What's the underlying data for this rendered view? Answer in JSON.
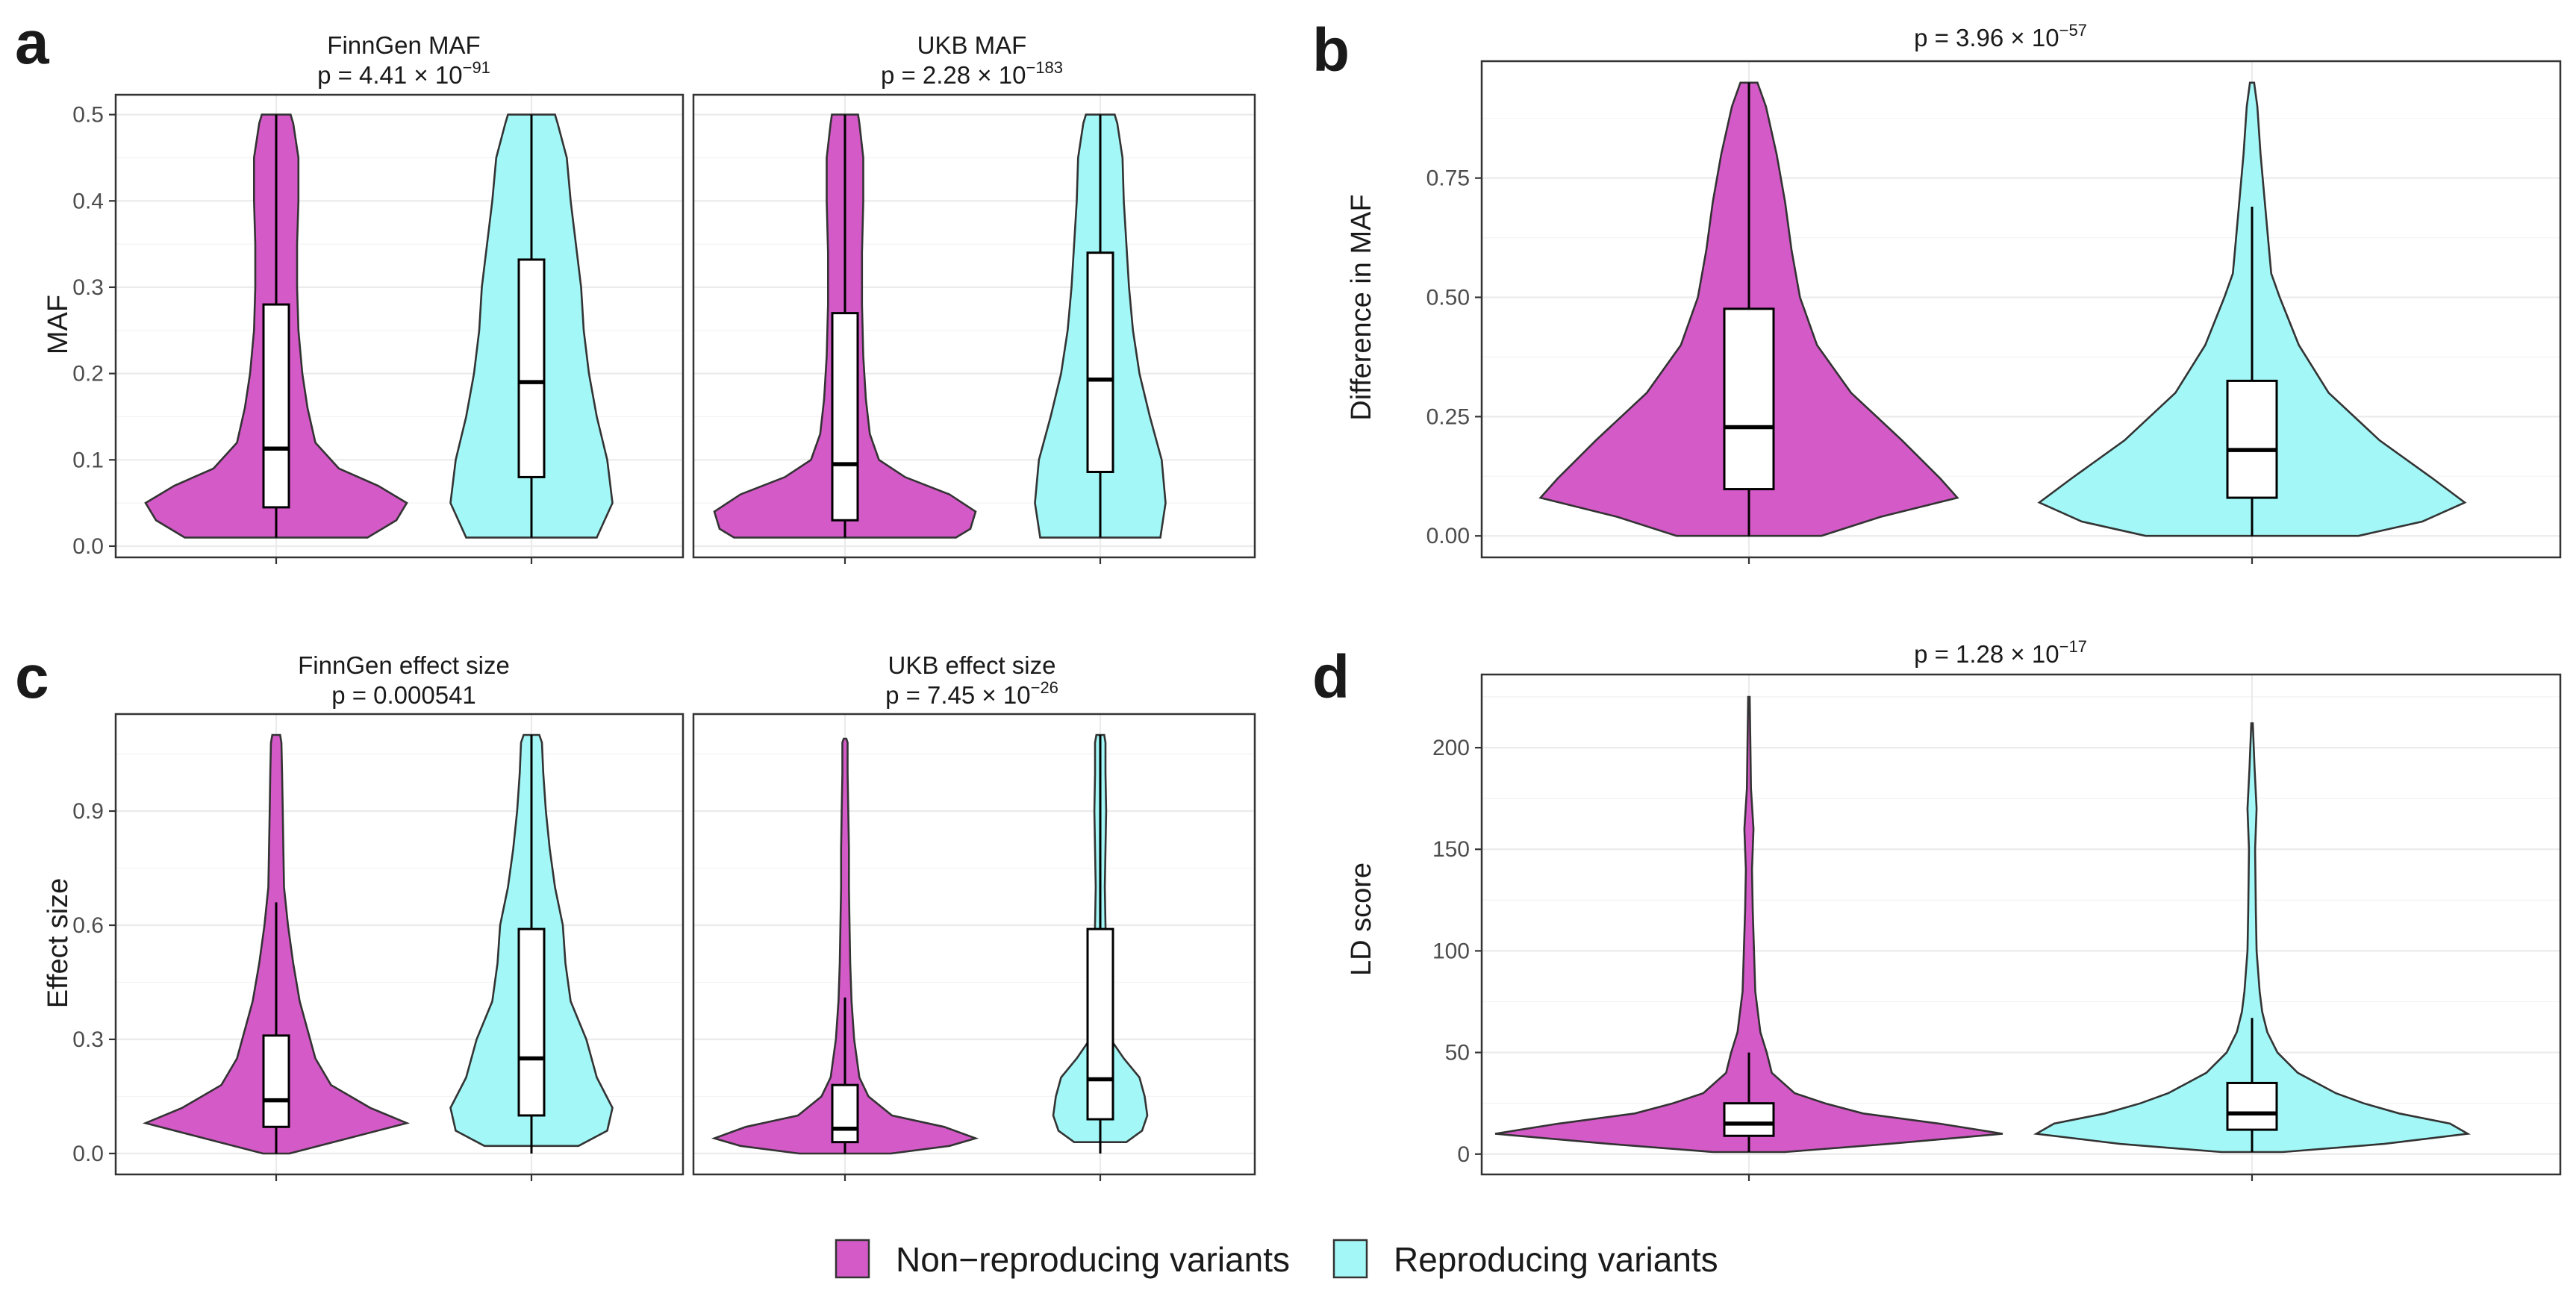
{
  "colors": {
    "non_reproducing": "#d45ac8",
    "reproducing": "#a3f7f7"
  },
  "legend": {
    "items": [
      {
        "label": "Non−reproducing variants",
        "color": "#d45ac8"
      },
      {
        "label": "Reproducing variants",
        "color": "#a3f7f7"
      }
    ],
    "position": "bottom"
  },
  "chart_data": [
    {
      "panel": "a",
      "type": "violin",
      "ylabel": "MAF",
      "ylim": [
        -0.013,
        0.523
      ],
      "yticks": [
        0.0,
        0.1,
        0.2,
        0.3,
        0.4,
        0.5
      ],
      "ytick_labels": [
        "0.0",
        "0.1",
        "0.2",
        "0.3",
        "0.4",
        "0.5"
      ],
      "facets": [
        {
          "title": "FinnGen MAF",
          "p_prefix": "p = 4.41 × 10",
          "p_exp": "−91",
          "series": [
            {
              "name": "Non−reproducing variants",
              "q1": 0.045,
              "median": 0.113,
              "q3": 0.28,
              "whisker_low": 0.01,
              "whisker_high": 0.5,
              "density": [
                [
                  0.01,
                  0.7
                ],
                [
                  0.03,
                  0.92
                ],
                [
                  0.05,
                  1.0
                ],
                [
                  0.07,
                  0.78
                ],
                [
                  0.09,
                  0.48
                ],
                [
                  0.12,
                  0.3
                ],
                [
                  0.16,
                  0.24
                ],
                [
                  0.2,
                  0.2
                ],
                [
                  0.25,
                  0.17
                ],
                [
                  0.3,
                  0.16
                ],
                [
                  0.35,
                  0.16
                ],
                [
                  0.4,
                  0.17
                ],
                [
                  0.45,
                  0.17
                ],
                [
                  0.49,
                  0.13
                ],
                [
                  0.5,
                  0.11
                ]
              ]
            },
            {
              "name": "Reproducing variants",
              "q1": 0.08,
              "median": 0.19,
              "q3": 0.332,
              "whisker_low": 0.01,
              "whisker_high": 0.5,
              "density": [
                [
                  0.01,
                  0.5
                ],
                [
                  0.05,
                  0.62
                ],
                [
                  0.1,
                  0.58
                ],
                [
                  0.15,
                  0.5
                ],
                [
                  0.2,
                  0.44
                ],
                [
                  0.25,
                  0.4
                ],
                [
                  0.3,
                  0.38
                ],
                [
                  0.35,
                  0.34
                ],
                [
                  0.4,
                  0.3
                ],
                [
                  0.45,
                  0.27
                ],
                [
                  0.49,
                  0.2
                ],
                [
                  0.5,
                  0.18
                ]
              ]
            }
          ]
        },
        {
          "title": "UKB MAF",
          "p_prefix": "p = 2.28 × 10",
          "p_exp": "−183",
          "series": [
            {
              "name": "Non−reproducing variants",
              "q1": 0.03,
              "median": 0.095,
              "q3": 0.27,
              "whisker_low": 0.01,
              "whisker_high": 0.5,
              "density": [
                [
                  0.01,
                  0.85
                ],
                [
                  0.02,
                  0.96
                ],
                [
                  0.04,
                  1.0
                ],
                [
                  0.06,
                  0.8
                ],
                [
                  0.08,
                  0.46
                ],
                [
                  0.1,
                  0.26
                ],
                [
                  0.13,
                  0.19
                ],
                [
                  0.17,
                  0.16
                ],
                [
                  0.22,
                  0.14
                ],
                [
                  0.28,
                  0.13
                ],
                [
                  0.34,
                  0.13
                ],
                [
                  0.4,
                  0.14
                ],
                [
                  0.45,
                  0.14
                ],
                [
                  0.49,
                  0.11
                ],
                [
                  0.5,
                  0.1
                ]
              ]
            },
            {
              "name": "Reproducing variants",
              "q1": 0.086,
              "median": 0.193,
              "q3": 0.34,
              "whisker_low": 0.01,
              "whisker_high": 0.5,
              "density": [
                [
                  0.01,
                  0.46
                ],
                [
                  0.05,
                  0.5
                ],
                [
                  0.1,
                  0.47
                ],
                [
                  0.15,
                  0.38
                ],
                [
                  0.2,
                  0.3
                ],
                [
                  0.25,
                  0.25
                ],
                [
                  0.3,
                  0.22
                ],
                [
                  0.35,
                  0.2
                ],
                [
                  0.4,
                  0.18
                ],
                [
                  0.45,
                  0.17
                ],
                [
                  0.49,
                  0.13
                ],
                [
                  0.5,
                  0.11
                ]
              ]
            }
          ]
        }
      ]
    },
    {
      "panel": "b",
      "type": "violin",
      "ylabel": "Difference in MAF",
      "ylim": [
        -0.045,
        0.995
      ],
      "yticks": [
        0.0,
        0.25,
        0.5,
        0.75
      ],
      "ytick_labels": [
        "0.00",
        "0.25",
        "0.50",
        "0.75"
      ],
      "title": "p = 3.96 × 10",
      "title_exp": "−57",
      "series": [
        {
          "name": "Non−reproducing variants",
          "q1": 0.098,
          "median": 0.228,
          "q3": 0.476,
          "whisker_low": 0.0,
          "whisker_high": 0.95,
          "density": [
            [
              0.0,
              0.34
            ],
            [
              0.04,
              0.62
            ],
            [
              0.08,
              0.98
            ],
            [
              0.12,
              0.9
            ],
            [
              0.2,
              0.72
            ],
            [
              0.3,
              0.48
            ],
            [
              0.4,
              0.32
            ],
            [
              0.5,
              0.24
            ],
            [
              0.6,
              0.2
            ],
            [
              0.7,
              0.17
            ],
            [
              0.8,
              0.13
            ],
            [
              0.9,
              0.08
            ],
            [
              0.95,
              0.04
            ]
          ]
        },
        {
          "name": "Reproducing variants",
          "q1": 0.08,
          "median": 0.18,
          "q3": 0.325,
          "whisker_low": 0.0,
          "whisker_high": 0.69,
          "density": [
            [
              0.0,
              0.5
            ],
            [
              0.03,
              0.8
            ],
            [
              0.07,
              1.0
            ],
            [
              0.12,
              0.85
            ],
            [
              0.2,
              0.6
            ],
            [
              0.3,
              0.36
            ],
            [
              0.4,
              0.22
            ],
            [
              0.5,
              0.13
            ],
            [
              0.55,
              0.09
            ],
            [
              0.6,
              0.08
            ],
            [
              0.7,
              0.06
            ],
            [
              0.8,
              0.04
            ],
            [
              0.9,
              0.025
            ],
            [
              0.95,
              0.01
            ]
          ]
        }
      ]
    },
    {
      "panel": "c",
      "type": "violin",
      "ylabel": "Effect size",
      "ylim": [
        -0.055,
        1.155
      ],
      "yticks": [
        0.0,
        0.3,
        0.6,
        0.9
      ],
      "ytick_labels": [
        "0.0",
        "0.3",
        "0.6",
        "0.9"
      ],
      "facets": [
        {
          "title": "FinnGen effect size",
          "p_prefix": "p = 0.000541",
          "p_exp": "",
          "series": [
            {
              "name": "Non−reproducing variants",
              "q1": 0.07,
              "median": 0.14,
              "q3": 0.31,
              "whisker_low": 0.0,
              "whisker_high": 0.66,
              "density": [
                [
                  0.0,
                  0.1
                ],
                [
                  0.04,
                  0.55
                ],
                [
                  0.08,
                  1.0
                ],
                [
                  0.12,
                  0.72
                ],
                [
                  0.18,
                  0.42
                ],
                [
                  0.25,
                  0.3
                ],
                [
                  0.3,
                  0.26
                ],
                [
                  0.4,
                  0.18
                ],
                [
                  0.5,
                  0.13
                ],
                [
                  0.6,
                  0.09
                ],
                [
                  0.7,
                  0.06
                ],
                [
                  0.8,
                  0.055
                ],
                [
                  0.9,
                  0.05
                ],
                [
                  1.0,
                  0.045
                ],
                [
                  1.08,
                  0.04
                ],
                [
                  1.1,
                  0.03
                ]
              ]
            },
            {
              "name": "Reproducing variants",
              "q1": 0.1,
              "median": 0.25,
              "q3": 0.59,
              "whisker_low": 0.0,
              "whisker_high": 1.1,
              "density": [
                [
                  0.02,
                  0.36
                ],
                [
                  0.06,
                  0.58
                ],
                [
                  0.12,
                  0.62
                ],
                [
                  0.2,
                  0.5
                ],
                [
                  0.3,
                  0.42
                ],
                [
                  0.4,
                  0.3
                ],
                [
                  0.5,
                  0.26
                ],
                [
                  0.6,
                  0.24
                ],
                [
                  0.7,
                  0.18
                ],
                [
                  0.8,
                  0.14
                ],
                [
                  0.9,
                  0.11
                ],
                [
                  1.0,
                  0.09
                ],
                [
                  1.08,
                  0.08
                ],
                [
                  1.1,
                  0.06
                ]
              ]
            }
          ]
        },
        {
          "title": "UKB effect size",
          "p_prefix": "p = 7.45 × 10",
          "p_exp": "−26",
          "series": [
            {
              "name": "Non−reproducing variants",
              "q1": 0.03,
              "median": 0.065,
              "q3": 0.18,
              "whisker_low": 0.0,
              "whisker_high": 0.41,
              "density": [
                [
                  0.0,
                  0.35
                ],
                [
                  0.02,
                  0.8
                ],
                [
                  0.04,
                  1.0
                ],
                [
                  0.07,
                  0.76
                ],
                [
                  0.1,
                  0.36
                ],
                [
                  0.15,
                  0.18
                ],
                [
                  0.2,
                  0.11
                ],
                [
                  0.3,
                  0.07
                ],
                [
                  0.4,
                  0.05
                ],
                [
                  0.5,
                  0.04
                ],
                [
                  0.6,
                  0.035
                ],
                [
                  0.7,
                  0.03
                ],
                [
                  0.8,
                  0.03
                ],
                [
                  0.9,
                  0.025
                ],
                [
                  1.0,
                  0.02
                ],
                [
                  1.08,
                  0.02
                ],
                [
                  1.09,
                  0.01
                ]
              ]
            },
            {
              "name": "Reproducing variants",
              "q1": 0.09,
              "median": 0.195,
              "q3": 0.59,
              "whisker_low": 0.0,
              "whisker_high": 1.1,
              "density": [
                [
                  0.03,
                  0.2
                ],
                [
                  0.06,
                  0.32
                ],
                [
                  0.1,
                  0.36
                ],
                [
                  0.15,
                  0.34
                ],
                [
                  0.2,
                  0.3
                ],
                [
                  0.25,
                  0.18
                ],
                [
                  0.3,
                  0.08
                ],
                [
                  0.4,
                  0.05
                ],
                [
                  0.5,
                  0.045
                ],
                [
                  0.6,
                  0.04
                ],
                [
                  0.7,
                  0.035
                ],
                [
                  0.8,
                  0.04
                ],
                [
                  0.9,
                  0.045
                ],
                [
                  1.0,
                  0.04
                ],
                [
                  1.08,
                  0.04
                ],
                [
                  1.1,
                  0.03
                ]
              ]
            }
          ]
        }
      ]
    },
    {
      "panel": "d",
      "type": "violin",
      "ylabel": "LD score",
      "ylim": [
        -10,
        236
      ],
      "yticks": [
        0,
        50,
        100,
        150,
        200
      ],
      "ytick_labels": [
        "0",
        "50",
        "100",
        "150",
        "200"
      ],
      "title": "p = 1.28 × 10",
      "title_exp": "−17",
      "series": [
        {
          "name": "Non−reproducing variants",
          "q1": 9,
          "median": 15,
          "q3": 25,
          "whisker_low": 1,
          "whisker_high": 50,
          "density": [
            [
              1,
              0.14
            ],
            [
              5,
              0.55
            ],
            [
              10,
              1.0
            ],
            [
              15,
              0.75
            ],
            [
              20,
              0.45
            ],
            [
              25,
              0.3
            ],
            [
              30,
              0.18
            ],
            [
              40,
              0.09
            ],
            [
              50,
              0.07
            ],
            [
              60,
              0.045
            ],
            [
              70,
              0.035
            ],
            [
              80,
              0.025
            ],
            [
              100,
              0.02
            ],
            [
              120,
              0.015
            ],
            [
              140,
              0.012
            ],
            [
              160,
              0.018
            ],
            [
              180,
              0.008
            ],
            [
              200,
              0.006
            ],
            [
              225,
              0.003
            ]
          ]
        },
        {
          "name": "Reproducing variants",
          "q1": 12,
          "median": 20,
          "q3": 35,
          "whisker_low": 1,
          "whisker_high": 67,
          "density": [
            [
              1,
              0.12
            ],
            [
              5,
              0.52
            ],
            [
              10,
              0.85
            ],
            [
              15,
              0.78
            ],
            [
              20,
              0.58
            ],
            [
              25,
              0.44
            ],
            [
              30,
              0.33
            ],
            [
              40,
              0.18
            ],
            [
              50,
              0.1
            ],
            [
              60,
              0.06
            ],
            [
              70,
              0.04
            ],
            [
              80,
              0.03
            ],
            [
              100,
              0.018
            ],
            [
              120,
              0.015
            ],
            [
              150,
              0.012
            ],
            [
              170,
              0.018
            ],
            [
              190,
              0.01
            ],
            [
              212,
              0.003
            ]
          ]
        }
      ]
    }
  ]
}
